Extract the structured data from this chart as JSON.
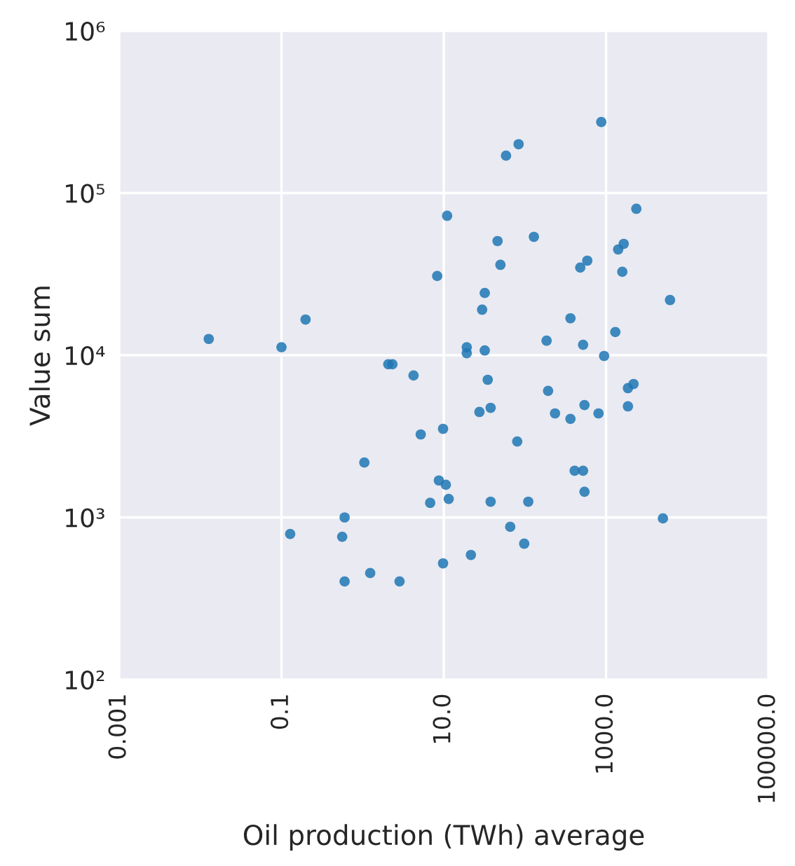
{
  "chart_data": {
    "type": "scatter",
    "xlabel": "Oil production (TWh) average",
    "ylabel": "Value sum",
    "log": "xy",
    "xlim": [
      0.001,
      100000
    ],
    "ylim": [
      100,
      1000000
    ],
    "xticks": [
      {
        "value": 0.001,
        "label": "0.001"
      },
      {
        "value": 0.1,
        "label": "0.1"
      },
      {
        "value": 10,
        "label": "10.0"
      },
      {
        "value": 1000,
        "label": "1000.0"
      },
      {
        "value": 100000,
        "label": "100000.0"
      }
    ],
    "yticks": [
      {
        "value": 100,
        "label": "10²"
      },
      {
        "value": 1000,
        "label": "10³"
      },
      {
        "value": 10000,
        "label": "10⁴"
      },
      {
        "value": 100000,
        "label": "10⁵"
      },
      {
        "value": 1000000,
        "label": "10⁶"
      }
    ],
    "grid": true,
    "marker": "circle",
    "series": [
      {
        "color": "#1f77b4",
        "x": [
          0.0127,
          0.1,
          0.198,
          2.07,
          2.33,
          4.24,
          8.3,
          11.0,
          5.2,
          9.8,
          1.05,
          8.7,
          10.6,
          11.5,
          6.8,
          0.6,
          0.128,
          0.56,
          9.8,
          1.24,
          0.6,
          2.85,
          873,
          83.6,
          58.5,
          2360,
          46,
          129,
          49.9,
          1410,
          1650,
          481,
          587,
          1585,
          32,
          29.7,
          364,
          6140,
          1300,
          185,
          521,
          19.2,
          19.2,
          32,
          946,
          34.8,
          193,
          1860,
          2180,
          27.5,
          37.8,
          235,
          364,
          542,
          807,
          1860,
          80.4,
          410,
          521,
          542,
          37.8,
          110,
          5020,
          65.9,
          98,
          21.6
        ],
        "values": [
          12600,
          11200,
          16600,
          8800,
          8800,
          7500,
          30800,
          72400,
          3250,
          3520,
          2180,
          1690,
          1590,
          1300,
          1230,
          1000,
          791,
          760,
          521,
          454,
          403,
          403,
          274000,
          200000,
          170000,
          80000,
          50600,
          53700,
          36100,
          44900,
          48600,
          34700,
          38300,
          32700,
          24200,
          19100,
          16900,
          21900,
          13900,
          12300,
          11600,
          11200,
          10300,
          10700,
          9900,
          7060,
          6030,
          6270,
          6650,
          4470,
          4740,
          4380,
          4050,
          4930,
          4380,
          4840,
          2940,
          1940,
          1940,
          1440,
          1250,
          1250,
          986,
          875,
          689,
          587
        ]
      }
    ]
  }
}
